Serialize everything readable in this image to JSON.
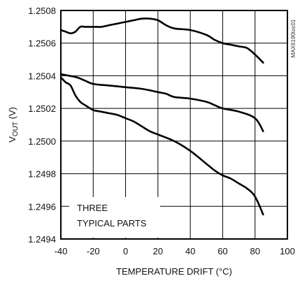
{
  "chart_data": {
    "type": "line",
    "title": "",
    "xlabel": "TEMPERATURE DRIFT (°C)",
    "ylabel_main": "V",
    "ylabel_sub": "OUT",
    "ylabel_unit": " (V)",
    "xlim": [
      -40,
      100
    ],
    "ylim": [
      1.2494,
      1.2508
    ],
    "xticks": [
      -40,
      -20,
      0,
      20,
      40,
      60,
      80,
      100
    ],
    "xtick_labels": [
      "-40",
      "-20",
      "0",
      "20",
      "40",
      "60",
      "80",
      "100"
    ],
    "yticks": [
      1.2494,
      1.2496,
      1.2498,
      1.25,
      1.2502,
      1.2504,
      1.2506,
      1.2508
    ],
    "ytick_labels": [
      "1.2494",
      "1.2496",
      "1.2498",
      "1.2500",
      "1.2502",
      "1.2504",
      "1.2506",
      "1.2508"
    ],
    "grid": true,
    "annotation_lines": [
      "THREE",
      "TYPICAL PARTS"
    ],
    "figure_code": "MAX6190toc01",
    "series": [
      {
        "x": [
          -40,
          -37,
          -34,
          -31,
          -28,
          -25,
          -20,
          -15,
          -10,
          -5,
          0,
          5,
          10,
          15,
          20,
          25,
          30,
          40,
          50,
          55,
          60,
          65,
          70,
          75,
          80,
          85
        ],
        "y": [
          1.25068,
          1.25067,
          1.25066,
          1.25067,
          1.2507,
          1.2507,
          1.2507,
          1.2507,
          1.25071,
          1.25072,
          1.25073,
          1.25074,
          1.25075,
          1.25075,
          1.25074,
          1.25071,
          1.25069,
          1.25068,
          1.25065,
          1.25062,
          1.2506,
          1.25059,
          1.25058,
          1.25057,
          1.25053,
          1.25048
        ]
      },
      {
        "x": [
          -40,
          -35,
          -30,
          -25,
          -20,
          -10,
          0,
          10,
          20,
          25,
          30,
          40,
          50,
          55,
          60,
          70,
          80,
          85
        ],
        "y": [
          1.25041,
          1.2504,
          1.25039,
          1.25037,
          1.25035,
          1.25034,
          1.25033,
          1.25032,
          1.2503,
          1.25029,
          1.25027,
          1.25026,
          1.25024,
          1.25022,
          1.2502,
          1.25018,
          1.25014,
          1.25006
        ]
      },
      {
        "x": [
          -40,
          -37,
          -34,
          -31,
          -28,
          -25,
          -20,
          -15,
          -10,
          -5,
          0,
          5,
          10,
          15,
          20,
          30,
          40,
          50,
          55,
          60,
          65,
          70,
          75,
          80,
          85
        ],
        "y": [
          1.25039,
          1.25036,
          1.25034,
          1.25028,
          1.25024,
          1.25022,
          1.25019,
          1.25018,
          1.25017,
          1.25016,
          1.25014,
          1.25012,
          1.25009,
          1.25006,
          1.25004,
          1.25,
          1.24994,
          1.24986,
          1.24982,
          1.24979,
          1.24977,
          1.24974,
          1.24971,
          1.24966,
          1.24955
        ]
      }
    ]
  }
}
